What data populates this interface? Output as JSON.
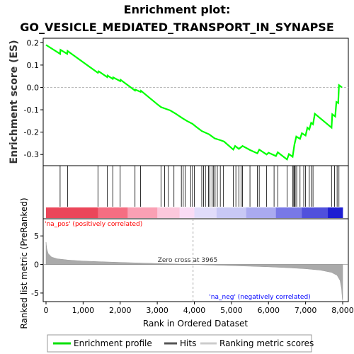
{
  "title_line1": "Enrichment plot:",
  "title_line2": "GO_VESICLE_MEDIATED_TRANSPORT_IN_SYNAPSE",
  "chart_data": {
    "type": "line",
    "n_genes": 8000,
    "es_ylabel": "Enrichment score (ES)",
    "es_ylim": [
      -0.35,
      0.22
    ],
    "es_yticks": [
      0.2,
      0.1,
      0.0,
      -0.1,
      -0.2,
      -0.3
    ],
    "es_ytick_labels": [
      "0.2",
      "0.1",
      "0.0",
      "-0.1",
      "-0.2",
      "-0.3"
    ],
    "xticks": [
      0,
      1000,
      2000,
      3000,
      4000,
      5000,
      6000,
      7000,
      8000
    ],
    "xtick_labels": [
      "0",
      "1,000",
      "2,000",
      "3,000",
      "4,000",
      "5,000",
      "6,000",
      "7,000",
      "8,000"
    ],
    "xlabel": "Rank in Ordered Dataset",
    "rank_ylabel": "Ranked list metric (PreRanked)",
    "rank_ylim": [
      -6.5,
      8
    ],
    "rank_yticks": [
      5,
      0,
      -5
    ],
    "rank_ytick_labels": [
      "5",
      "0",
      "-5"
    ],
    "zero_cross_rank": 3965,
    "zero_cross_label": "Zero cross at 3965",
    "pos_label": "'na_pos' (positively correlated)",
    "neg_label": "'na_neg' (negatively correlated)",
    "enrichment_profile": [
      [
        0,
        0.19
      ],
      [
        380,
        0.15
      ],
      [
        390,
        0.168
      ],
      [
        570,
        0.15
      ],
      [
        580,
        0.163
      ],
      [
        1400,
        0.065
      ],
      [
        1420,
        0.072
      ],
      [
        1650,
        0.046
      ],
      [
        1660,
        0.053
      ],
      [
        1800,
        0.038
      ],
      [
        1810,
        0.045
      ],
      [
        2000,
        0.028
      ],
      [
        2010,
        0.034
      ],
      [
        2400,
        -0.014
      ],
      [
        2410,
        -0.01
      ],
      [
        2550,
        -0.02
      ],
      [
        2560,
        -0.015
      ],
      [
        3000,
        -0.075
      ],
      [
        3100,
        -0.088
      ],
      [
        3250,
        -0.097
      ],
      [
        3350,
        -0.103
      ],
      [
        3500,
        -0.118
      ],
      [
        3700,
        -0.14
      ],
      [
        3800,
        -0.15
      ],
      [
        3950,
        -0.163
      ],
      [
        4050,
        -0.176
      ],
      [
        4200,
        -0.195
      ],
      [
        4400,
        -0.21
      ],
      [
        4550,
        -0.228
      ],
      [
        4700,
        -0.236
      ],
      [
        4800,
        -0.242
      ],
      [
        5050,
        -0.278
      ],
      [
        5100,
        -0.262
      ],
      [
        5200,
        -0.275
      ],
      [
        5300,
        -0.262
      ],
      [
        5500,
        -0.28
      ],
      [
        5700,
        -0.295
      ],
      [
        5750,
        -0.278
      ],
      [
        5950,
        -0.3
      ],
      [
        6000,
        -0.292
      ],
      [
        6200,
        -0.307
      ],
      [
        6250,
        -0.29
      ],
      [
        6500,
        -0.322
      ],
      [
        6550,
        -0.298
      ],
      [
        6650,
        -0.31
      ],
      [
        6700,
        -0.255
      ],
      [
        6750,
        -0.22
      ],
      [
        6850,
        -0.23
      ],
      [
        6900,
        -0.205
      ],
      [
        7000,
        -0.215
      ],
      [
        7050,
        -0.18
      ],
      [
        7100,
        -0.188
      ],
      [
        7150,
        -0.158
      ],
      [
        7200,
        -0.165
      ],
      [
        7250,
        -0.118
      ],
      [
        7700,
        -0.18
      ],
      [
        7720,
        -0.12
      ],
      [
        7800,
        -0.13
      ],
      [
        7830,
        -0.065
      ],
      [
        7880,
        -0.07
      ],
      [
        7900,
        0.01
      ],
      [
        7980,
        0.0
      ]
    ],
    "hit_ranks": [
      380,
      580,
      1400,
      1650,
      1800,
      2000,
      2400,
      2550,
      3100,
      3200,
      3300,
      3450,
      3650,
      3700,
      3750,
      3900,
      3950,
      4000,
      4200,
      4250,
      4300,
      4380,
      4420,
      4480,
      4520,
      4560,
      4620,
      4700,
      4780,
      5050,
      5120,
      5200,
      5260,
      5300,
      5500,
      5700,
      5750,
      5950,
      6150,
      6250,
      6500,
      6650,
      6680,
      6700,
      6720,
      6760,
      6850,
      6950,
      7000,
      7100,
      7150,
      7200,
      7700,
      7780,
      7850,
      7900
    ],
    "rank_metric_samples": [
      [
        0,
        3.9
      ],
      [
        20,
        2.8
      ],
      [
        60,
        1.9
      ],
      [
        150,
        1.3
      ],
      [
        300,
        1.0
      ],
      [
        600,
        0.78
      ],
      [
        1000,
        0.6
      ],
      [
        1500,
        0.48
      ],
      [
        2000,
        0.37
      ],
      [
        2500,
        0.27
      ],
      [
        3000,
        0.17
      ],
      [
        3500,
        0.08
      ],
      [
        3965,
        0.0
      ],
      [
        4500,
        -0.1
      ],
      [
        5000,
        -0.2
      ],
      [
        5500,
        -0.3
      ],
      [
        6000,
        -0.42
      ],
      [
        6500,
        -0.56
      ],
      [
        7000,
        -0.75
      ],
      [
        7400,
        -1.0
      ],
      [
        7700,
        -1.4
      ],
      [
        7850,
        -1.9
      ],
      [
        7930,
        -2.8
      ],
      [
        7970,
        -4.2
      ],
      [
        7990,
        -6.0
      ],
      [
        8000,
        -6.3
      ]
    ]
  },
  "legend": {
    "items": [
      {
        "label": "Enrichment profile",
        "color": "#00e000"
      },
      {
        "label": "Hits",
        "color": "#555555"
      },
      {
        "label": "Ranking metric scores",
        "color": "#cccccc"
      }
    ]
  },
  "colors": {
    "es_line": "#00ff00",
    "hit_line": "#000000",
    "rank_fill": "#aaaaaa",
    "pos_text": "#ff0000",
    "neg_text": "#0000ff"
  }
}
